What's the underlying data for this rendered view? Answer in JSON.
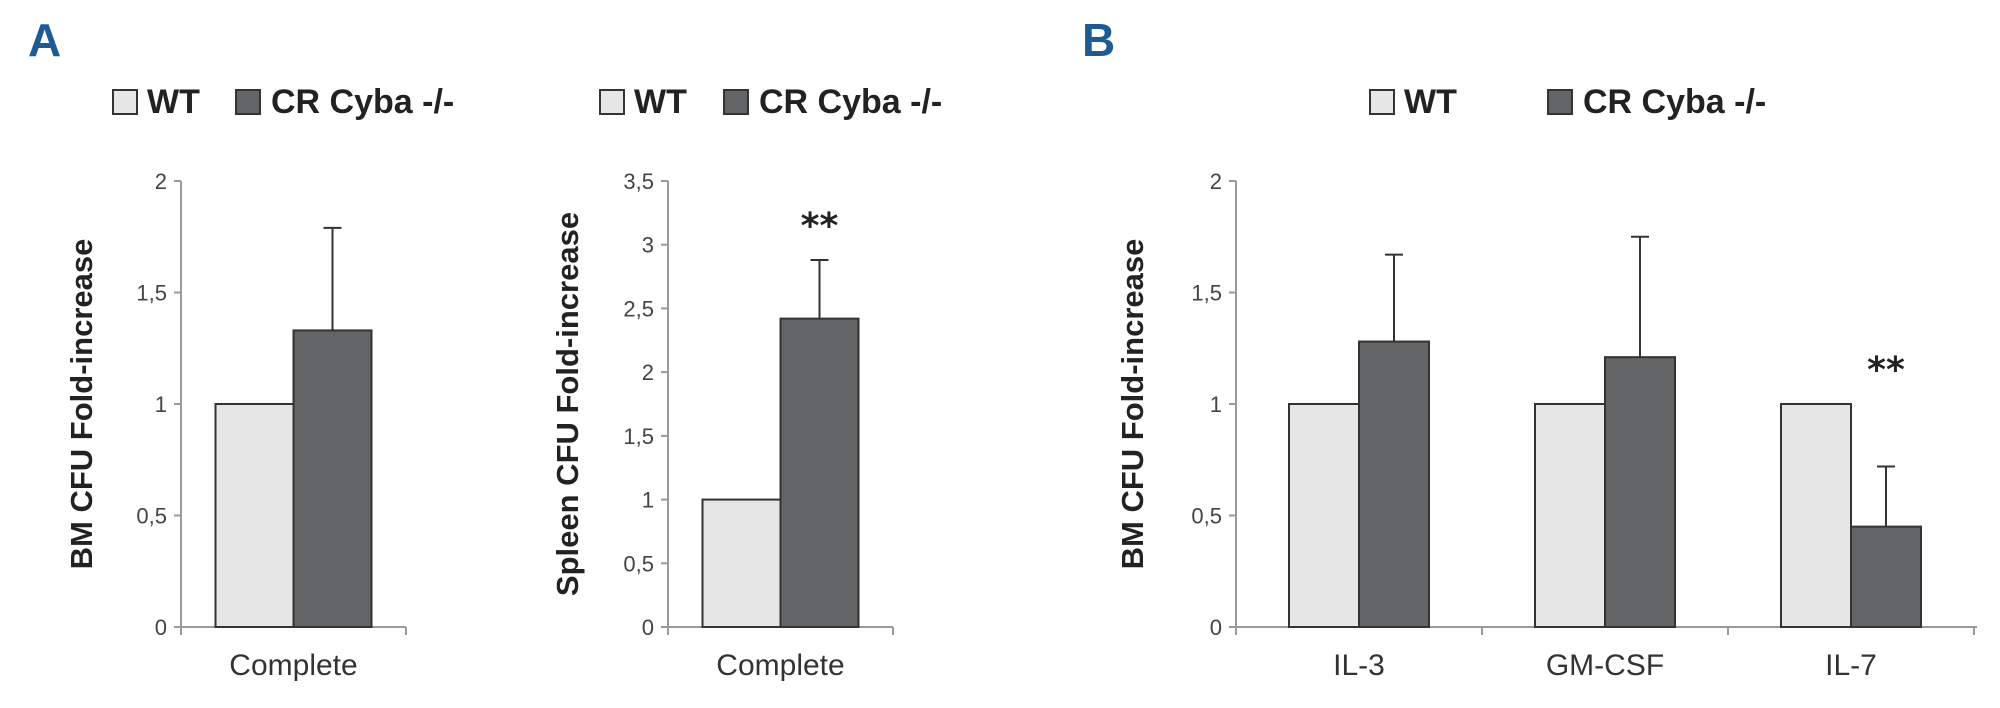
{
  "panels": [
    {
      "letter": "A"
    },
    {
      "letter": "B"
    }
  ],
  "colors": {
    "wt": "#e6e6e6",
    "cr": "#636466",
    "edge": "#333333"
  },
  "chart_data": [
    {
      "type": "bar",
      "panel": "A",
      "categories": [
        "Complete"
      ],
      "series": [
        {
          "name": "WT",
          "values": [
            1.0
          ],
          "errors": [
            null
          ]
        },
        {
          "name": "CR Cyba -/-",
          "values": [
            1.33
          ],
          "errors": [
            0.46
          ]
        }
      ],
      "significance": [
        ""
      ],
      "ylabel": "BM CFU Fold-increase",
      "xlabel": "",
      "ylim": [
        0,
        2
      ],
      "yticks": [
        0,
        0.5,
        1,
        1.5,
        2
      ],
      "ytick_labels": [
        "0",
        "0,5",
        "1",
        "1,5",
        "2"
      ],
      "legend": [
        "WT",
        "CR Cyba -/-"
      ]
    },
    {
      "type": "bar",
      "panel": "A",
      "categories": [
        "Complete"
      ],
      "series": [
        {
          "name": "WT",
          "values": [
            1.0
          ],
          "errors": [
            null
          ]
        },
        {
          "name": "CR Cyba -/-",
          "values": [
            2.42
          ],
          "errors": [
            0.46
          ]
        }
      ],
      "significance": [
        "**"
      ],
      "ylabel": "Spleen CFU Fold-increase",
      "xlabel": "",
      "ylim": [
        0,
        3.5
      ],
      "yticks": [
        0,
        0.5,
        1,
        1.5,
        2,
        2.5,
        3,
        3.5
      ],
      "ytick_labels": [
        "0",
        "0,5",
        "1",
        "1,5",
        "2",
        "2,5",
        "3",
        "3,5"
      ],
      "legend": [
        "WT",
        "CR Cyba -/-"
      ]
    },
    {
      "type": "bar",
      "panel": "B",
      "categories": [
        "IL-3",
        "GM-CSF",
        "IL-7"
      ],
      "series": [
        {
          "name": "WT",
          "values": [
            1.0,
            1.0,
            1.0
          ],
          "errors": [
            null,
            null,
            null
          ]
        },
        {
          "name": "CR Cyba -/-",
          "values": [
            1.28,
            1.21,
            0.45
          ],
          "errors": [
            0.39,
            0.54,
            0.27
          ]
        }
      ],
      "significance": [
        "",
        "",
        "**"
      ],
      "ylabel": "BM CFU Fold-increase",
      "xlabel": "",
      "ylim": [
        0,
        2
      ],
      "yticks": [
        0,
        0.5,
        1,
        1.5,
        2
      ],
      "ytick_labels": [
        "0",
        "0,5",
        "1",
        "1,5",
        "2"
      ],
      "legend": [
        "WT",
        "CR Cyba -/-"
      ]
    }
  ]
}
